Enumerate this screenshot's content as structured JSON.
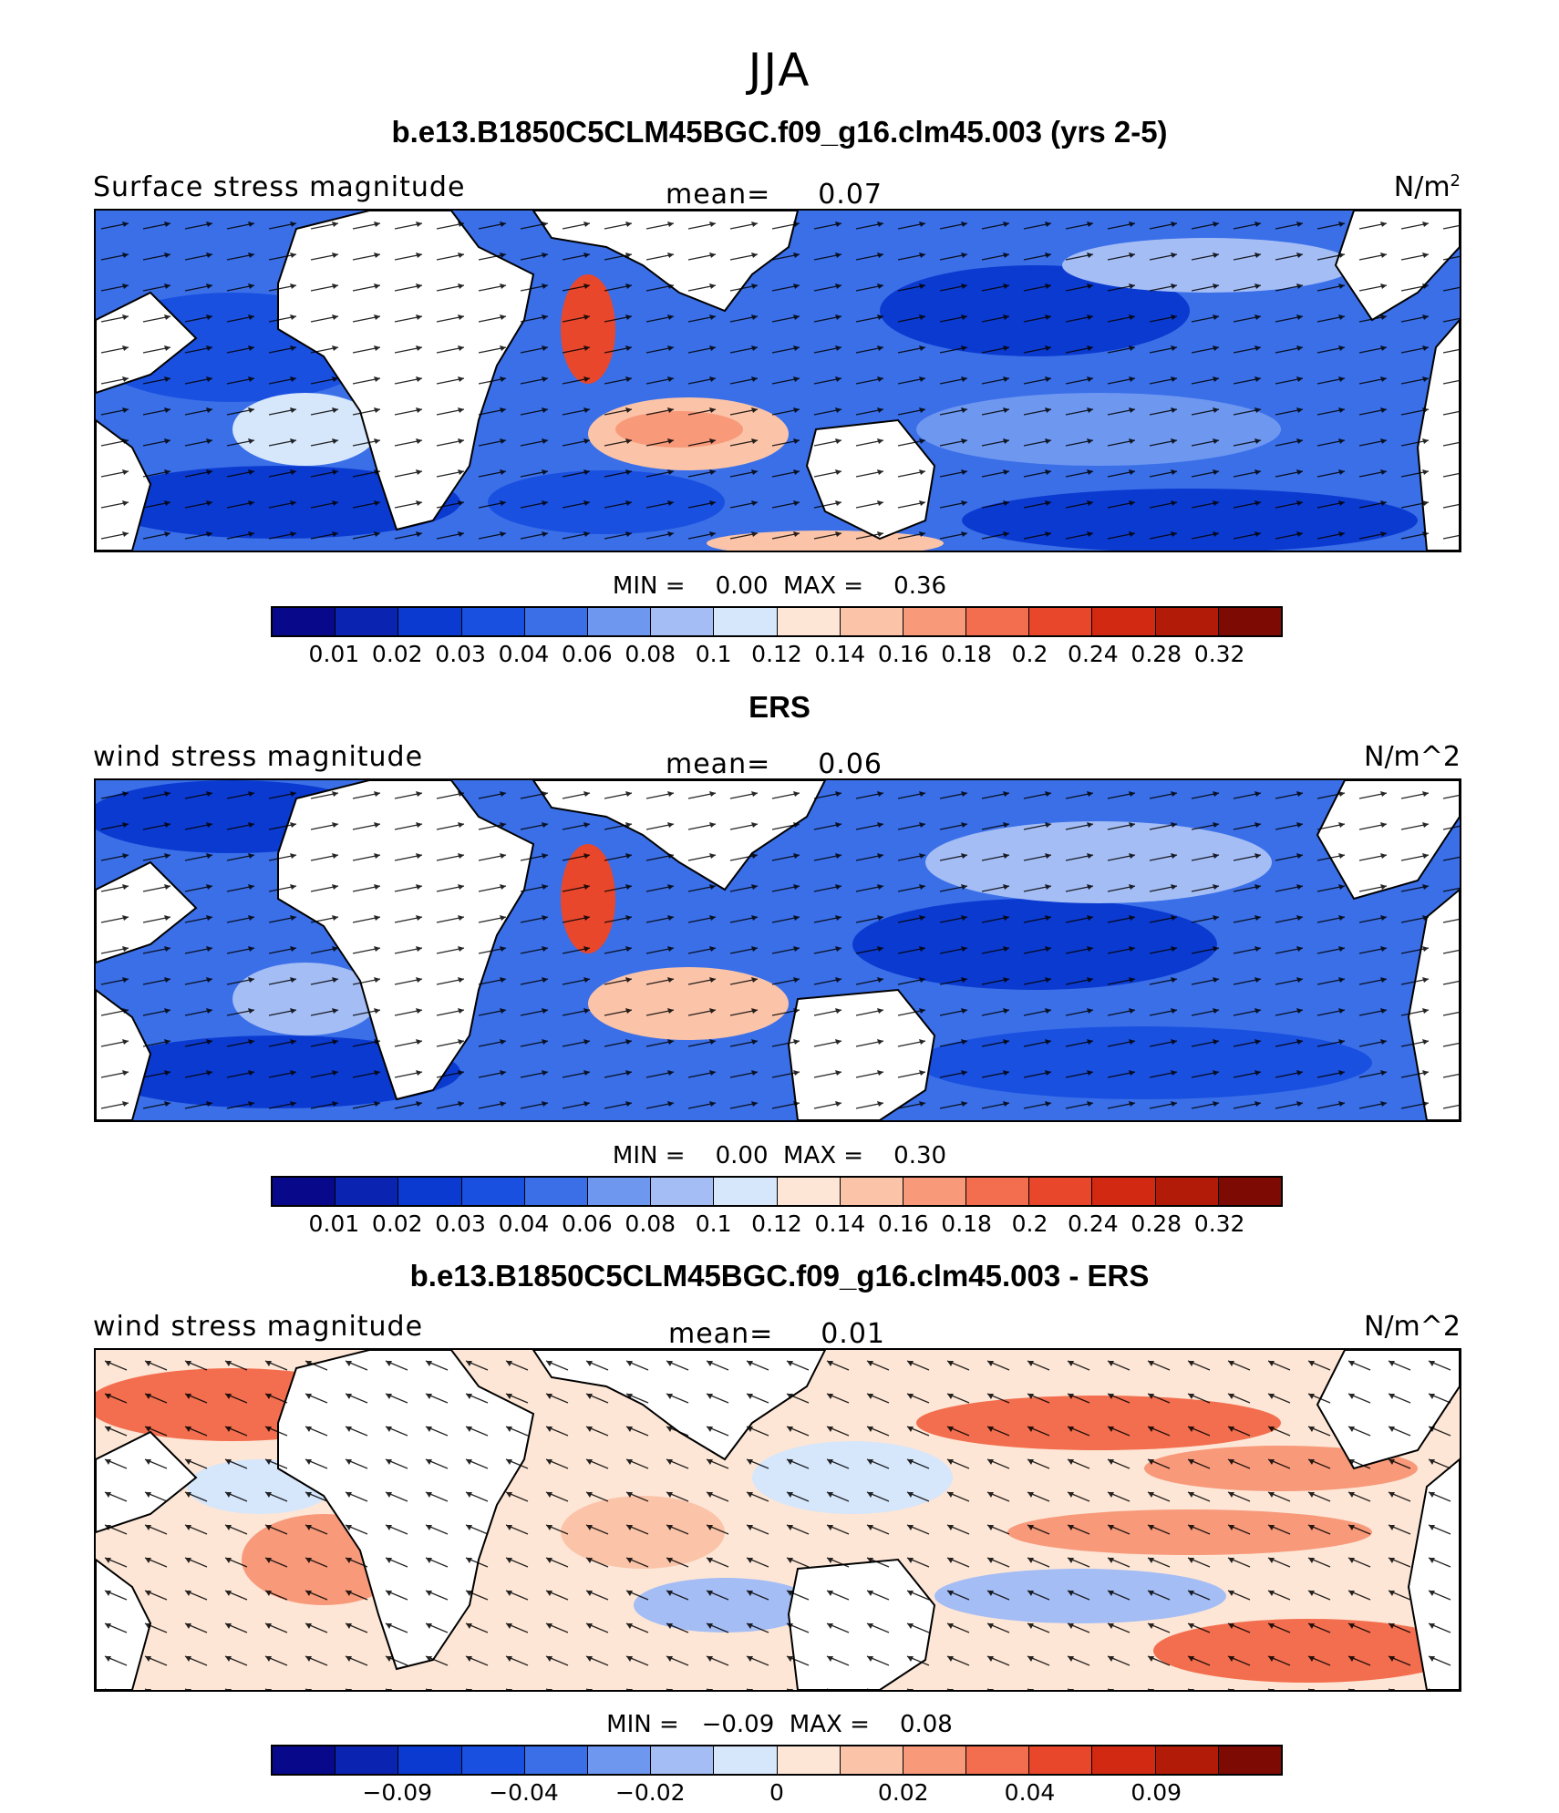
{
  "season": "JJA",
  "colors": [
    "#08088a",
    "#0a23b0",
    "#0b3ad0",
    "#1a50e0",
    "#3a6fe8",
    "#6e97f0",
    "#a4bdf5",
    "#d6e6fb",
    "#fde6d6",
    "#fbc4a8",
    "#f8997a",
    "#f36e4e",
    "#e8472c",
    "#d22a12",
    "#b21b08",
    "#7d0a03"
  ],
  "panels": [
    {
      "title": "b.e13.B1850C5CLM45BGC.f09_g16.clm45.003 (yrs 2-5)",
      "left_label": "Surface stress magnitude",
      "mean_label": "mean=",
      "mean_value": "0.07",
      "units_base": "N/m",
      "units_sup": "2",
      "min_label": "MIN =",
      "min_value": "0.00",
      "max_label": "MAX =",
      "max_value": "0.36",
      "ticks": [
        "0.01",
        "0.02",
        "0.03",
        "0.04",
        "0.06",
        "0.08",
        "0.1",
        "0.12",
        "0.14",
        "0.16",
        "0.18",
        "0.2",
        "0.24",
        "0.28",
        "0.32"
      ]
    },
    {
      "title": "ERS",
      "left_label": "wind stress magnitude",
      "mean_label": "mean=",
      "mean_value": "0.06",
      "units_base": "N/m^2",
      "units_sup": "",
      "min_label": "MIN =",
      "min_value": "0.00",
      "max_label": "MAX =",
      "max_value": "0.30",
      "ticks": [
        "0.01",
        "0.02",
        "0.03",
        "0.04",
        "0.06",
        "0.08",
        "0.1",
        "0.12",
        "0.14",
        "0.16",
        "0.18",
        "0.2",
        "0.24",
        "0.28",
        "0.32"
      ]
    },
    {
      "title": "b.e13.B1850C5CLM45BGC.f09_g16.clm45.003 - ERS",
      "left_label": "wind stress magnitude",
      "mean_label": "mean=",
      "mean_value": "0.01",
      "units_base": "N/m^2",
      "units_sup": "",
      "min_label": "MIN =",
      "min_value": "−0.09",
      "max_label": "MAX =",
      "max_value": "0.08",
      "ticks": [
        "−0.09",
        "−0.04",
        "−0.02",
        "0",
        "0.02",
        "0.04",
        "0.09"
      ]
    }
  ]
}
